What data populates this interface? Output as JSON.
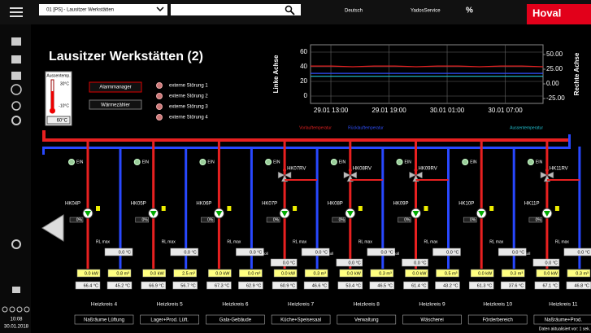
{
  "topbar": {
    "site": "01 [PS] - Lausitzer Werkstätten",
    "language": "Deutsch",
    "service": "YadosService",
    "percent": "%",
    "logo": "Hoval"
  },
  "clock": {
    "time": "10:08",
    "date": "30.01.2018"
  },
  "title": "Lausitzer Werkstätten (2)",
  "outdoor": {
    "label": "Aussentemp.",
    "max": "30°C",
    "min": "-10°C",
    "value": "60°C"
  },
  "buttons": [
    "Alarmmanager",
    "Wärmezähler"
  ],
  "alarms": [
    "externe Störung 1",
    "externe Störung 2",
    "externe Störung 3",
    "externe Störung 4"
  ],
  "trend": {
    "ylabel": "Linke Achse",
    "y2label": "Rechte Achse",
    "ylim": [
      -10,
      70
    ],
    "yticks": [
      60,
      40,
      20,
      0
    ],
    "y2lim": [
      -33.33,
      66.67
    ],
    "y2ticks": [
      {
        "value": 50,
        "label": "50.00"
      },
      {
        "value": 25,
        "label": "25.00"
      },
      {
        "value": 0,
        "label": "0.00"
      },
      {
        "value": -25,
        "label": "-25.00"
      }
    ],
    "xticks": [
      "29.01 13:00",
      "29.01 19:00",
      "30.01 01:00",
      "30.01 07:00"
    ],
    "series": [
      {
        "name": "Vorlauftemperatur",
        "color": "#e02020",
        "values": [
          41,
          41,
          40,
          41,
          41,
          40,
          41,
          41,
          40,
          41,
          41,
          40
        ]
      },
      {
        "name": "Rücklauftemperatur",
        "color": "#3050ff",
        "values": [
          31,
          31,
          31,
          31,
          31,
          31,
          31,
          31,
          31,
          31,
          31,
          31
        ]
      },
      {
        "name": "Aussentemperatur",
        "color": "#20c0d0",
        "values": [
          27,
          27,
          27,
          27,
          27,
          27,
          27,
          27,
          27,
          27,
          27,
          27
        ]
      }
    ]
  },
  "circuits": [
    {
      "name": "Heizkreis 4",
      "label": "Naßräume Lüftung",
      "status": "EIN",
      "pump": "HK04P",
      "pump_pct": "0%",
      "rl_max": "RL max",
      "rl_max_value": "0.0 °C",
      "power": "0.0 kW",
      "flow": "0.8 m³",
      "supply": "66.4 °C",
      "return": "45.2 °C"
    },
    {
      "name": "Heizkreis 5",
      "label": "Lager+Prod. Lüft.",
      "status": "EIN",
      "pump": "HK05P",
      "pump_pct": "0%",
      "rl_max": "RL max",
      "rl_max_value": "0.0 °C",
      "power": "0.0 kW",
      "flow": "2.5 m³",
      "supply": "66.9 °C",
      "return": "56.7 °C"
    },
    {
      "name": "Heizkreis 6",
      "label": "Gala-Gebäude",
      "status": "EIN",
      "pump": "HK06P",
      "pump_pct": "0%",
      "rl_max": "RL max",
      "rl_max_value": "0.0 °C",
      "power": "0.0 kW",
      "flow": "0.0 m³",
      "supply": "67.3 °C",
      "return": "62.9 °C"
    },
    {
      "name": "Heizkreis 7",
      "label": "Küche+Speisesaal",
      "status": "EIN",
      "pump": "HK07P",
      "pump_pct": "0%",
      "rl_max": "RL max",
      "rl_max_value": "0.0 °C",
      "power": "0.0 kW",
      "flow": "0.3 m³",
      "supply": "60.9 °C",
      "return": "46.6 °C",
      "valve": "HK07RV",
      "soll": "Soll",
      "soll_value": "0.0 °C"
    },
    {
      "name": "Heizkreis 8",
      "label": "Verwaltung",
      "status": "EIN",
      "pump": "HK08P",
      "pump_pct": "0%",
      "rl_max": "RL max",
      "rl_max_value": "0.0 °C",
      "power": "0.0 kW",
      "flow": "0.3 m³",
      "supply": "53.4 °C",
      "return": "46.5 °C",
      "valve": "HK08RV",
      "soll": "Soll",
      "soll_value": "0.0 °C"
    },
    {
      "name": "Heizkreis 9",
      "label": "Wäscherei",
      "status": "EIN",
      "pump": "HK09P",
      "pump_pct": "0%",
      "rl_max": "RL max",
      "rl_max_value": "0.0 °C",
      "power": "0.0 kW",
      "flow": "0.5 m³",
      "supply": "61.4 °C",
      "return": "43.2 °C",
      "valve": "HK09RV",
      "soll": "Soll",
      "soll_value": "0.0 °C"
    },
    {
      "name": "Heizkreis 10",
      "label": "Förderbereich",
      "status": "EIN",
      "pump": "HK10P",
      "pump_pct": "0%",
      "rl_max": "RL max",
      "rl_max_value": "0.0 °C",
      "power": "0.0 kW",
      "flow": "0.3 m³",
      "supply": "61.3 °C",
      "return": "37.6 °C"
    },
    {
      "name": "Heizkreis 11",
      "label": "Naßräume+Prod.",
      "status": "EIN",
      "pump": "HK11P",
      "pump_pct": "0%",
      "rl_max": "RL max",
      "rl_max_value": "0.0 °C",
      "power": "0.0 kW",
      "flow": "0.3 m³",
      "supply": "67.1 °C",
      "return": "46.8 °C",
      "valve": "HK11RV",
      "soll": "Soll",
      "soll_value": "0.0 °C"
    }
  ],
  "footer": "Daten aktualisiert vor: 1 sek."
}
